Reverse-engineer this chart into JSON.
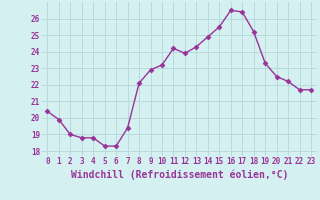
{
  "x": [
    0,
    1,
    2,
    3,
    4,
    5,
    6,
    7,
    8,
    9,
    10,
    11,
    12,
    13,
    14,
    15,
    16,
    17,
    18,
    19,
    20,
    21,
    22,
    23
  ],
  "y": [
    20.4,
    19.9,
    19.0,
    18.8,
    18.8,
    18.3,
    18.3,
    19.4,
    22.1,
    22.9,
    23.2,
    24.2,
    23.9,
    24.3,
    24.9,
    25.5,
    26.5,
    26.4,
    25.2,
    23.3,
    22.5,
    22.2,
    21.7,
    21.7
  ],
  "line_color": "#993399",
  "marker": "D",
  "marker_size": 2.5,
  "bg_color": "#d4f0f0",
  "grid_color": "#b8dada",
  "xlabel": "Windchill (Refroidissement éolien,°C)",
  "ylim": [
    17.7,
    27.0
  ],
  "xlim": [
    -0.5,
    23.5
  ],
  "yticks": [
    18,
    19,
    20,
    21,
    22,
    23,
    24,
    25,
    26
  ],
  "xticks": [
    0,
    1,
    2,
    3,
    4,
    5,
    6,
    7,
    8,
    9,
    10,
    11,
    12,
    13,
    14,
    15,
    16,
    17,
    18,
    19,
    20,
    21,
    22,
    23
  ],
  "tick_fontsize": 5.5,
  "xlabel_fontsize": 7.0,
  "linewidth": 1.0
}
